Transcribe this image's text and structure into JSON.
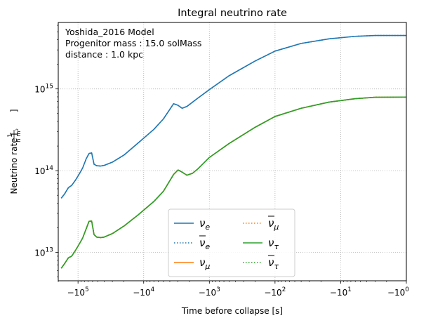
{
  "chart_data": {
    "type": "line",
    "title": "Integral neutrino rate",
    "xlabel": "Time before collapse [s]",
    "ylabel": "Neutrino rate [1/(h m²)]",
    "x_scale": "symlog-negative",
    "y_scale": "log",
    "xlim": [
      -200000,
      -1
    ],
    "ylim": [
      4500000000000.0,
      6500000000000000.0
    ],
    "grid": true,
    "legend_placement": "lower center",
    "x_ticks": [
      {
        "value": -100000,
        "label": "−10⁵"
      },
      {
        "value": -10000,
        "label": "−10⁴"
      },
      {
        "value": -1000,
        "label": "−10³"
      },
      {
        "value": -100,
        "label": "−10²"
      },
      {
        "value": -10,
        "label": "−10¹"
      },
      {
        "value": -1,
        "label": "−10⁰"
      }
    ],
    "y_ticks": [
      {
        "value": 10000000000000.0,
        "label": "10¹³"
      },
      {
        "value": 100000000000000.0,
        "label": "10¹⁴"
      },
      {
        "value": 1000000000000000.0,
        "label": "10¹⁵"
      }
    ],
    "annotation": {
      "model": "Yoshida_2016 Model",
      "mass": "Progenitor mass  : 15.0 solMass",
      "distance": "distance : 1.0 kpc"
    },
    "series": [
      {
        "name": "νe",
        "label_base": "ν",
        "label_sub": "e",
        "bar": false,
        "color": "#1f77b4",
        "dash": "solid",
        "points": [
          [
            -180000,
            46000000000000.0
          ],
          [
            -160000,
            52000000000000.0
          ],
          [
            -140000,
            62000000000000.0
          ],
          [
            -125000,
            66000000000000.0
          ],
          [
            -110000,
            76000000000000.0
          ],
          [
            -95000,
            92000000000000.0
          ],
          [
            -85000,
            108000000000000.0
          ],
          [
            -75000,
            140000000000000.0
          ],
          [
            -68000,
            162000000000000.0
          ],
          [
            -62000,
            165000000000000.0
          ],
          [
            -57000,
            120000000000000.0
          ],
          [
            -52000,
            115000000000000.0
          ],
          [
            -45000,
            114000000000000.0
          ],
          [
            -40000,
            116000000000000.0
          ],
          [
            -30000,
            127000000000000.0
          ],
          [
            -20000,
            155000000000000.0
          ],
          [
            -12000,
            220000000000000.0
          ],
          [
            -7000,
            320000000000000.0
          ],
          [
            -5000,
            430000000000000.0
          ],
          [
            -3500,
            660000000000000.0
          ],
          [
            -3000,
            630000000000000.0
          ],
          [
            -2600,
            580000000000000.0
          ],
          [
            -2200,
            610000000000000.0
          ],
          [
            -1500,
            770000000000000.0
          ],
          [
            -1000,
            980000000000000.0
          ],
          [
            -500,
            1450000000000000.0
          ],
          [
            -200,
            2200000000000000.0
          ],
          [
            -100,
            2900000000000000.0
          ],
          [
            -40,
            3600000000000000.0
          ],
          [
            -15,
            4100000000000000.0
          ],
          [
            -6,
            4400000000000000.0
          ],
          [
            -3,
            4500000000000000.0
          ],
          [
            -1,
            4500000000000000.0
          ]
        ]
      },
      {
        "name": "ν̄e",
        "label_base": "ν",
        "label_sub": "e",
        "bar": true,
        "color": "#1f77b4",
        "dash": "dotted",
        "points": [
          [
            -180000,
            46000000000000.0
          ],
          [
            -160000,
            52000000000000.0
          ],
          [
            -140000,
            62000000000000.0
          ],
          [
            -125000,
            66000000000000.0
          ],
          [
            -110000,
            76000000000000.0
          ],
          [
            -95000,
            92000000000000.0
          ],
          [
            -85000,
            108000000000000.0
          ],
          [
            -75000,
            140000000000000.0
          ],
          [
            -68000,
            162000000000000.0
          ],
          [
            -62000,
            165000000000000.0
          ],
          [
            -57000,
            120000000000000.0
          ],
          [
            -52000,
            115000000000000.0
          ],
          [
            -45000,
            114000000000000.0
          ],
          [
            -40000,
            116000000000000.0
          ],
          [
            -30000,
            127000000000000.0
          ],
          [
            -20000,
            155000000000000.0
          ],
          [
            -12000,
            220000000000000.0
          ],
          [
            -7000,
            320000000000000.0
          ],
          [
            -5000,
            430000000000000.0
          ],
          [
            -3500,
            660000000000000.0
          ],
          [
            -3000,
            630000000000000.0
          ],
          [
            -2600,
            580000000000000.0
          ],
          [
            -2200,
            610000000000000.0
          ],
          [
            -1500,
            770000000000000.0
          ],
          [
            -1000,
            980000000000000.0
          ],
          [
            -500,
            1450000000000000.0
          ],
          [
            -200,
            2200000000000000.0
          ],
          [
            -100,
            2900000000000000.0
          ],
          [
            -40,
            3600000000000000.0
          ],
          [
            -15,
            4100000000000000.0
          ],
          [
            -6,
            4400000000000000.0
          ],
          [
            -3,
            4500000000000000.0
          ],
          [
            -1,
            4500000000000000.0
          ]
        ]
      },
      {
        "name": "νμ",
        "label_base": "ν",
        "label_sub": "μ",
        "bar": false,
        "color": "#ff7f0e",
        "dash": "solid",
        "points": [
          [
            -180000,
            6400000000000.0
          ],
          [
            -160000,
            7300000000000.0
          ],
          [
            -140000,
            8600000000000.0
          ],
          [
            -125000,
            9000000000000.0
          ],
          [
            -110000,
            10500000000000.0
          ],
          [
            -95000,
            12800000000000.0
          ],
          [
            -85000,
            15000000000000.0
          ],
          [
            -75000,
            19500000000000.0
          ],
          [
            -68000,
            24000000000000.0
          ],
          [
            -62000,
            24200000000000.0
          ],
          [
            -57000,
            16500000000000.0
          ],
          [
            -52000,
            15400000000000.0
          ],
          [
            -45000,
            15200000000000.0
          ],
          [
            -40000,
            15400000000000.0
          ],
          [
            -30000,
            17000000000000.0
          ],
          [
            -20000,
            21000000000000.0
          ],
          [
            -12000,
            29000000000000.0
          ],
          [
            -7000,
            42000000000000.0
          ],
          [
            -5000,
            56000000000000.0
          ],
          [
            -3500,
            90000000000000.0
          ],
          [
            -3000,
            102000000000000.0
          ],
          [
            -2600,
            96000000000000.0
          ],
          [
            -2200,
            88000000000000.0
          ],
          [
            -1800,
            93000000000000.0
          ],
          [
            -1500,
            105000000000000.0
          ],
          [
            -1000,
            145000000000000.0
          ],
          [
            -500,
            215000000000000.0
          ],
          [
            -200,
            340000000000000.0
          ],
          [
            -100,
            460000000000000.0
          ],
          [
            -40,
            580000000000000.0
          ],
          [
            -15,
            690000000000000.0
          ],
          [
            -6,
            760000000000000.0
          ],
          [
            -3,
            790000000000000.0
          ],
          [
            -1,
            795000000000000.0
          ]
        ]
      },
      {
        "name": "ν̄μ",
        "label_base": "ν",
        "label_sub": "μ",
        "bar": true,
        "color": "#ff7f0e",
        "dash": "dotted",
        "points": [
          [
            -180000,
            6400000000000.0
          ],
          [
            -160000,
            7300000000000.0
          ],
          [
            -140000,
            8600000000000.0
          ],
          [
            -125000,
            9000000000000.0
          ],
          [
            -110000,
            10500000000000.0
          ],
          [
            -95000,
            12800000000000.0
          ],
          [
            -85000,
            15000000000000.0
          ],
          [
            -75000,
            19500000000000.0
          ],
          [
            -68000,
            24000000000000.0
          ],
          [
            -62000,
            24200000000000.0
          ],
          [
            -57000,
            16500000000000.0
          ],
          [
            -52000,
            15400000000000.0
          ],
          [
            -45000,
            15200000000000.0
          ],
          [
            -40000,
            15400000000000.0
          ],
          [
            -30000,
            17000000000000.0
          ],
          [
            -20000,
            21000000000000.0
          ],
          [
            -12000,
            29000000000000.0
          ],
          [
            -7000,
            42000000000000.0
          ],
          [
            -5000,
            56000000000000.0
          ],
          [
            -3500,
            90000000000000.0
          ],
          [
            -3000,
            102000000000000.0
          ],
          [
            -2600,
            96000000000000.0
          ],
          [
            -2200,
            88000000000000.0
          ],
          [
            -1800,
            93000000000000.0
          ],
          [
            -1500,
            105000000000000.0
          ],
          [
            -1000,
            145000000000000.0
          ],
          [
            -500,
            215000000000000.0
          ],
          [
            -200,
            340000000000000.0
          ],
          [
            -100,
            460000000000000.0
          ],
          [
            -40,
            580000000000000.0
          ],
          [
            -15,
            690000000000000.0
          ],
          [
            -6,
            760000000000000.0
          ],
          [
            -3,
            790000000000000.0
          ],
          [
            -1,
            795000000000000.0
          ]
        ]
      },
      {
        "name": "ντ",
        "label_base": "ν",
        "label_sub": "τ",
        "bar": false,
        "color": "#2ca02c",
        "dash": "solid",
        "points": [
          [
            -180000,
            6400000000000.0
          ],
          [
            -160000,
            7300000000000.0
          ],
          [
            -140000,
            8600000000000.0
          ],
          [
            -125000,
            9000000000000.0
          ],
          [
            -110000,
            10500000000000.0
          ],
          [
            -95000,
            12800000000000.0
          ],
          [
            -85000,
            15000000000000.0
          ],
          [
            -75000,
            19500000000000.0
          ],
          [
            -68000,
            24000000000000.0
          ],
          [
            -62000,
            24200000000000.0
          ],
          [
            -57000,
            16500000000000.0
          ],
          [
            -52000,
            15400000000000.0
          ],
          [
            -45000,
            15200000000000.0
          ],
          [
            -40000,
            15400000000000.0
          ],
          [
            -30000,
            17000000000000.0
          ],
          [
            -20000,
            21000000000000.0
          ],
          [
            -12000,
            29000000000000.0
          ],
          [
            -7000,
            42000000000000.0
          ],
          [
            -5000,
            56000000000000.0
          ],
          [
            -3500,
            90000000000000.0
          ],
          [
            -3000,
            102000000000000.0
          ],
          [
            -2600,
            96000000000000.0
          ],
          [
            -2200,
            88000000000000.0
          ],
          [
            -1800,
            93000000000000.0
          ],
          [
            -1500,
            105000000000000.0
          ],
          [
            -1000,
            145000000000000.0
          ],
          [
            -500,
            215000000000000.0
          ],
          [
            -200,
            340000000000000.0
          ],
          [
            -100,
            460000000000000.0
          ],
          [
            -40,
            580000000000000.0
          ],
          [
            -15,
            690000000000000.0
          ],
          [
            -6,
            760000000000000.0
          ],
          [
            -3,
            790000000000000.0
          ],
          [
            -1,
            795000000000000.0
          ]
        ]
      },
      {
        "name": "ν̄τ",
        "label_base": "ν",
        "label_sub": "τ",
        "bar": true,
        "color": "#2ca02c",
        "dash": "dotted",
        "points": [
          [
            -180000,
            6400000000000.0
          ],
          [
            -160000,
            7300000000000.0
          ],
          [
            -140000,
            8600000000000.0
          ],
          [
            -125000,
            9000000000000.0
          ],
          [
            -110000,
            10500000000000.0
          ],
          [
            -95000,
            12800000000000.0
          ],
          [
            -85000,
            15000000000000.0
          ],
          [
            -75000,
            19500000000000.0
          ],
          [
            -68000,
            24000000000000.0
          ],
          [
            -62000,
            24200000000000.0
          ],
          [
            -57000,
            16500000000000.0
          ],
          [
            -52000,
            15400000000000.0
          ],
          [
            -45000,
            15200000000000.0
          ],
          [
            -40000,
            15400000000000.0
          ],
          [
            -30000,
            17000000000000.0
          ],
          [
            -20000,
            21000000000000.0
          ],
          [
            -12000,
            29000000000000.0
          ],
          [
            -7000,
            42000000000000.0
          ],
          [
            -5000,
            56000000000000.0
          ],
          [
            -3500,
            90000000000000.0
          ],
          [
            -3000,
            102000000000000.0
          ],
          [
            -2600,
            96000000000000.0
          ],
          [
            -2200,
            88000000000000.0
          ],
          [
            -1800,
            93000000000000.0
          ],
          [
            -1500,
            105000000000000.0
          ],
          [
            -1000,
            145000000000000.0
          ],
          [
            -500,
            215000000000000.0
          ],
          [
            -200,
            340000000000000.0
          ],
          [
            -100,
            460000000000000.0
          ],
          [
            -40,
            580000000000000.0
          ],
          [
            -15,
            690000000000000.0
          ],
          [
            -6,
            760000000000000.0
          ],
          [
            -3,
            790000000000000.0
          ],
          [
            -1,
            795000000000000.0
          ]
        ]
      }
    ]
  }
}
